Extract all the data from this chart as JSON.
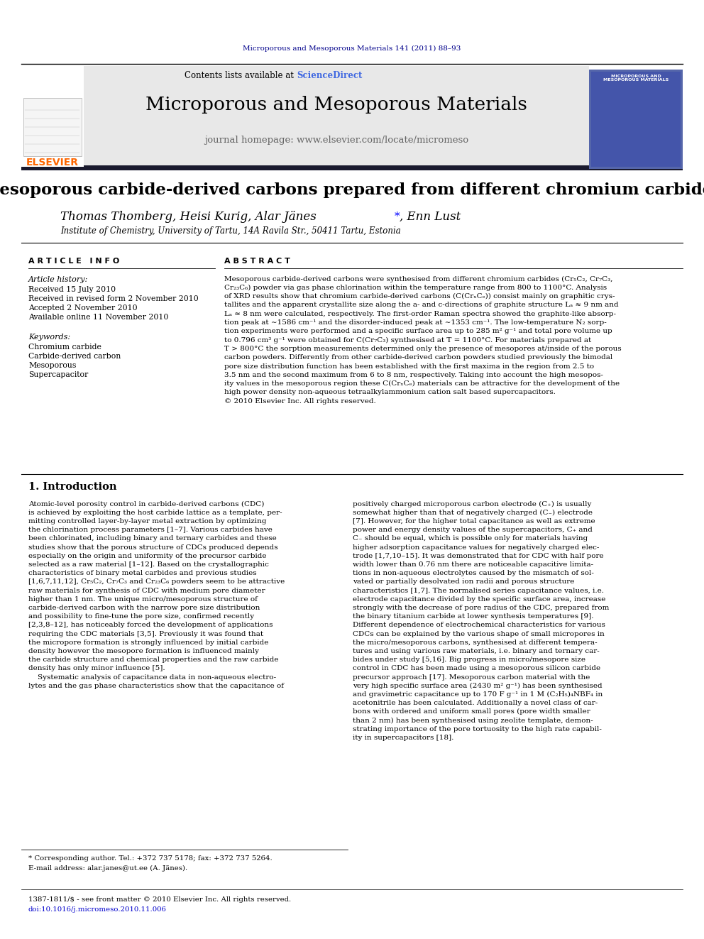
{
  "journal_ref": "Microporous and Mesoporous Materials 141 (2011) 88–93",
  "journal_ref_color": "#00008B",
  "journal_name": "Microporous and Mesoporous Materials",
  "contents_line": "Contents lists available at ",
  "sciencedirect": "ScienceDirect",
  "sciencedirect_color": "#4169E1",
  "journal_homepage": "journal homepage: www.elsevier.com/locate/micromeso",
  "paper_title": "Mesoporous carbide-derived carbons prepared from different chromium carbides",
  "authors_part1": "Thomas Thomberg, Heisi Kurig, Alar Jänes",
  "authors_asterisk": "*",
  "authors_part2": ", Enn Lust",
  "affiliation": "Institute of Chemistry, University of Tartu, 14A Ravila Str., 50411 Tartu, Estonia",
  "article_info_header": "A R T I C L E   I N F O",
  "abstract_header": "A B S T R A C T",
  "article_history_label": "Article history:",
  "received": "Received 15 July 2010",
  "received_revised": "Received in revised form 2 November 2010",
  "accepted": "Accepted 2 November 2010",
  "available": "Available online 11 November 2010",
  "keywords_label": "Keywords:",
  "keyword1": "Chromium carbide",
  "keyword2": "Carbide-derived carbon",
  "keyword3": "Mesoporous",
  "keyword4": "Supercapacitor",
  "abstract_lines": [
    "Mesoporous carbide-derived carbons were synthesised from different chromium carbides (Cr₅C₂, Cr₇C₃,",
    "Cr₂₃C₆) powder via gas phase chlorination within the temperature range from 800 to 1100°C. Analysis",
    "of XRD results show that chromium carbide-derived carbons (C(CrₓCₑ)) consist mainly on graphitic crys-",
    "tallites and the apparent crystallite size along the a- and c-directions of graphite structure Lₐ ≈ 9 nm and",
    "Lₐ ≈ 8 nm were calculated, respectively. The first-order Raman spectra showed the graphite-like absorp-",
    "tion peak at ∼1586 cm⁻¹ and the disorder-induced peak at ∼1353 cm⁻¹. The low-temperature N₂ sorp-",
    "tion experiments were performed and a specific surface area up to 285 m² g⁻¹ and total pore volume up",
    "to 0.796 cm³ g⁻¹ were obtained for C(Cr₇C₃) synthesised at T = 1100°C. For materials prepared at",
    "T > 800°C the sorption measurements determined only the presence of mesopores at/inside of the porous",
    "carbon powders. Differently from other carbide-derived carbon powders studied previously the bimodal",
    "pore size distribution function has been established with the first maxima in the region from 2.5 to",
    "3.5 nm and the second maximum from 6 to 8 nm, respectively. Taking into account the high mesopos-",
    "ity values in the mesoporous region these C(CrₓCₑ) materials can be attractive for the development of the",
    "high power density non-aqueous tetraalkylammonium cation salt based supercapacitors.",
    "© 2010 Elsevier Inc. All rights reserved."
  ],
  "intro_header": "1. Introduction",
  "intro_lines1": [
    "Atomic-level porosity control in carbide-derived carbons (CDC)",
    "is achieved by exploiting the host carbide lattice as a template, per-",
    "mitting controlled layer-by-layer metal extraction by optimizing",
    "the chlorination process parameters [1–7]. Various carbides have",
    "been chlorinated, including binary and ternary carbides and these",
    "studies show that the porous structure of CDCs produced depends",
    "especially on the origin and uniformity of the precursor carbide",
    "selected as a raw material [1–12]. Based on the crystallographic",
    "characteristics of binary metal carbides and previous studies",
    "[1,6,7,11,12], Cr₅C₂, Cr₇C₃ and Cr₂₃C₆ powders seem to be attractive",
    "raw materials for synthesis of CDC with medium pore diameter",
    "higher than 1 nm. The unique micro/mesoporous structure of",
    "carbide-derived carbon with the narrow pore size distribution",
    "and possibility to fine-tune the pore size, confirmed recently",
    "[2,3,8–12], has noticeably forced the development of applications",
    "requiring the CDC materials [3,5]. Previously it was found that",
    "the micropore formation is strongly influenced by initial carbide",
    "density however the mesopore formation is influenced mainly",
    "the carbide structure and chemical properties and the raw carbide",
    "density has only minor influence [5].",
    "    Systematic analysis of capacitance data in non-aqueous electro-",
    "lytes and the gas phase characteristics show that the capacitance of"
  ],
  "intro_lines2": [
    "positively charged microporous carbon electrode (C₊) is usually",
    "somewhat higher than that of negatively charged (C₋) electrode",
    "[7]. However, for the higher total capacitance as well as extreme",
    "power and energy density values of the supercapacitors, C₊ and",
    "C₋ should be equal, which is possible only for materials having",
    "higher adsorption capacitance values for negatively charged elec-",
    "trode [1,7,10–15]. It was demonstrated that for CDC with half pore",
    "width lower than 0.76 nm there are noticeable capacitive limita-",
    "tions in non-aqueous electrolytes caused by the mismatch of sol-",
    "vated or partially desolvated ion radii and porous structure",
    "characteristics [1,7]. The normalised series capacitance values, i.e.",
    "electrode capacitance divided by the specific surface area, increase",
    "strongly with the decrease of pore radius of the CDC, prepared from",
    "the binary titanium carbide at lower synthesis temperatures [9].",
    "Different dependence of electrochemical characteristics for various",
    "CDCs can be explained by the various shape of small micropores in",
    "the micro/mesoporous carbons, synthesised at different tempera-",
    "tures and using various raw materials, i.e. binary and ternary car-",
    "bides under study [5,16]. Big progress in micro/mesopore size",
    "control in CDC has been made using a mesoporous silicon carbide",
    "precursor approach [17]. Mesoporous carbon material with the",
    "very high specific surface area (2430 m² g⁻¹) has been synthesised",
    "and gravimetric capacitance up to 170 F g⁻¹ in 1 M (C₂H₅)₄NBF₄ in",
    "acetonitrile has been calculated. Additionally a novel class of car-",
    "bons with ordered and uniform small pores (pore width smaller",
    "than 2 nm) has been synthesised using zeolite template, demon-",
    "strating importance of the pore tortuosity to the high rate capabil-",
    "ity in supercapacitors [18]."
  ],
  "footnote_star": "* Corresponding author. Tel.: +372 737 5178; fax: +372 737 5264.",
  "footnote_email": "E-mail address: alar.janes@ut.ee (A. Jänes).",
  "footer1": "1387-1811/$ - see front matter © 2010 Elsevier Inc. All rights reserved.",
  "footer2": "doi:10.1016/j.micromeso.2010.11.006",
  "bg_color": "#FFFFFF",
  "header_bg": "#E8E8E8",
  "dark_bar_color": "#1a1a2e",
  "text_color": "#000000"
}
